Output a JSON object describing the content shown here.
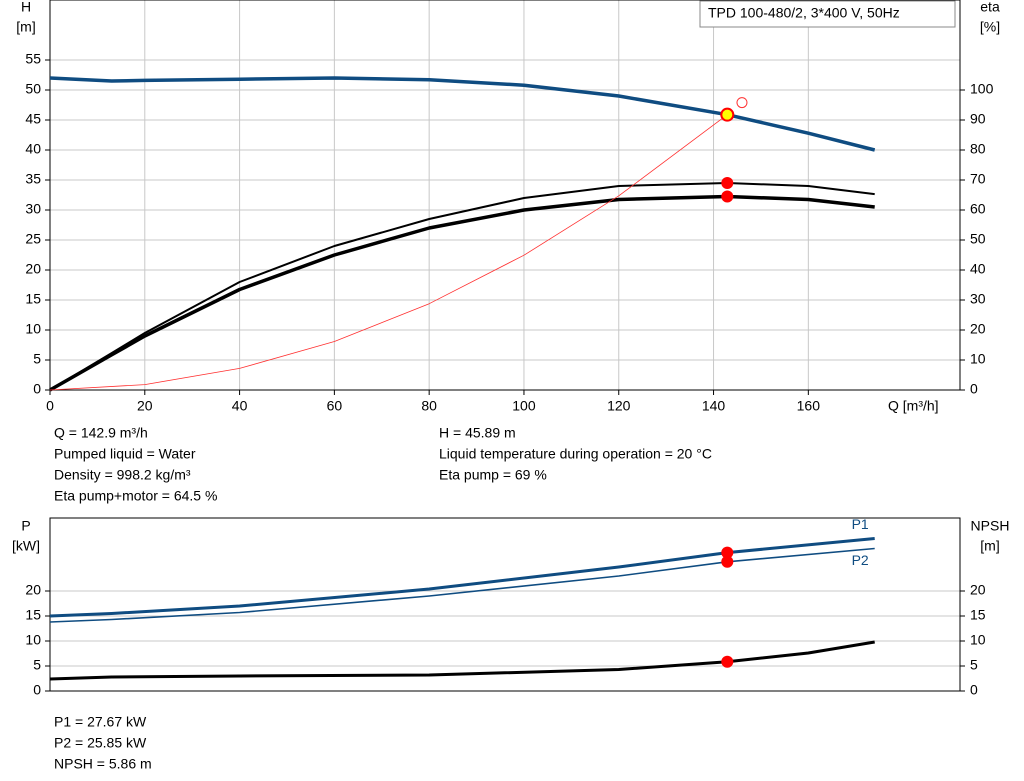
{
  "chart_data": [
    {
      "type": "line",
      "y_label": "H",
      "y_unit": "[m]",
      "y2_label": "eta",
      "y2_unit": "[%]",
      "x_label": "Q [m³/h]",
      "legend_text": "TPD 100-480/2, 3*400 V, 50Hz",
      "xlim": [
        0,
        192
      ],
      "xticks": [
        0,
        20,
        40,
        60,
        80,
        100,
        120,
        140,
        160
      ],
      "ylim": [
        0,
        65
      ],
      "yticks": [
        0,
        5,
        10,
        15,
        20,
        25,
        30,
        35,
        40,
        45,
        50,
        55
      ],
      "y2lim": [
        0,
        130
      ],
      "y2ticks": [
        0,
        10,
        20,
        30,
        40,
        50,
        60,
        70,
        80,
        90,
        100
      ],
      "grid": true,
      "series": [
        {
          "color": "#0f4c81",
          "width": 3.5,
          "x": [
            0,
            13,
            20,
            40,
            60,
            80,
            100,
            120,
            142.9,
            160,
            174
          ],
          "values": [
            52,
            51.5,
            51.6,
            51.8,
            52,
            51.7,
            50.8,
            49,
            45.89,
            42.8,
            40
          ]
        },
        {
          "color": "#000000",
          "width": 2,
          "axis": "y2",
          "x": [
            0,
            13,
            20,
            40,
            60,
            80,
            100,
            120,
            142.9,
            160,
            174
          ],
          "values": [
            0,
            12.3,
            19,
            36,
            48,
            57,
            64,
            68,
            69,
            68,
            65.3
          ]
        },
        {
          "color": "#000000",
          "width": 3.5,
          "axis": "y2",
          "x": [
            0,
            13,
            20,
            40,
            60,
            80,
            100,
            120,
            142.9,
            160,
            174
          ],
          "values": [
            0,
            11.7,
            18,
            33.5,
            45,
            54,
            60,
            63.5,
            64.5,
            63.5,
            61
          ]
        },
        {
          "color": "#ff3030",
          "width": 0.8,
          "x": [
            0,
            20,
            40,
            60,
            80,
            100,
            120,
            142.9
          ],
          "values": [
            0,
            0.9,
            3.6,
            8.09,
            14.38,
            22.47,
            32.36,
            45.89
          ]
        }
      ],
      "points": [
        {
          "x": 142.9,
          "y": 45.89,
          "color": "#ffff00"
        },
        {
          "x": 142.9,
          "y": 69,
          "axis": "y2",
          "color": "#ff0000"
        },
        {
          "x": 142.9,
          "y": 64.5,
          "axis": "y2",
          "color": "#ff0000"
        },
        {
          "x": 146,
          "y": 47.9,
          "color": "none"
        }
      ],
      "info_left": [
        "Q = 142.9 m³/h",
        "Pumped liquid = Water",
        "Density = 998.2 kg/m³",
        "Eta pump+motor = 64.5 %"
      ],
      "info_right": [
        "H = 45.89 m",
        "Liquid temperature during operation = 20 °C",
        "Eta pump = 69 %"
      ]
    },
    {
      "type": "line",
      "y_label": "P",
      "y_unit": "[kW]",
      "y2_label": "NPSH",
      "y2_unit": "[m]",
      "xlim": [
        0,
        192
      ],
      "ylim": [
        0,
        34.6
      ],
      "yticks": [
        0,
        5,
        10,
        15,
        20
      ],
      "y2lim": [
        0,
        34.6
      ],
      "y2ticks": [
        0,
        5,
        10,
        15,
        20
      ],
      "grid": true,
      "series": [
        {
          "name": "P1",
          "color": "#0f4c81",
          "width": 3,
          "x": [
            0,
            13,
            40,
            80,
            120,
            142.9,
            174
          ],
          "values": [
            15,
            15.5,
            17,
            20.4,
            24.8,
            27.67,
            30.5
          ]
        },
        {
          "name": "P2",
          "color": "#0f4c81",
          "width": 1.6,
          "x": [
            0,
            13,
            40,
            80,
            120,
            142.9,
            174
          ],
          "values": [
            13.8,
            14.3,
            15.7,
            19,
            23,
            25.85,
            28.5
          ]
        },
        {
          "color": "#000000",
          "width": 3,
          "axis": "y2",
          "x": [
            0,
            13,
            40,
            80,
            120,
            142.9,
            160,
            174
          ],
          "values": [
            2.4,
            2.8,
            3,
            3.2,
            4.3,
            5.86,
            7.6,
            9.8
          ]
        }
      ],
      "points": [
        {
          "x": 142.9,
          "y": 27.67,
          "color": "#ff0000"
        },
        {
          "x": 142.9,
          "y": 25.85,
          "color": "#ff0000"
        },
        {
          "x": 142.9,
          "y": 5.86,
          "axis": "y2",
          "color": "#ff0000"
        }
      ],
      "info_left": [
        "P1 = 27.67 kW",
        "P2 = 25.85 kW",
        "NPSH = 5.86 m"
      ]
    }
  ]
}
